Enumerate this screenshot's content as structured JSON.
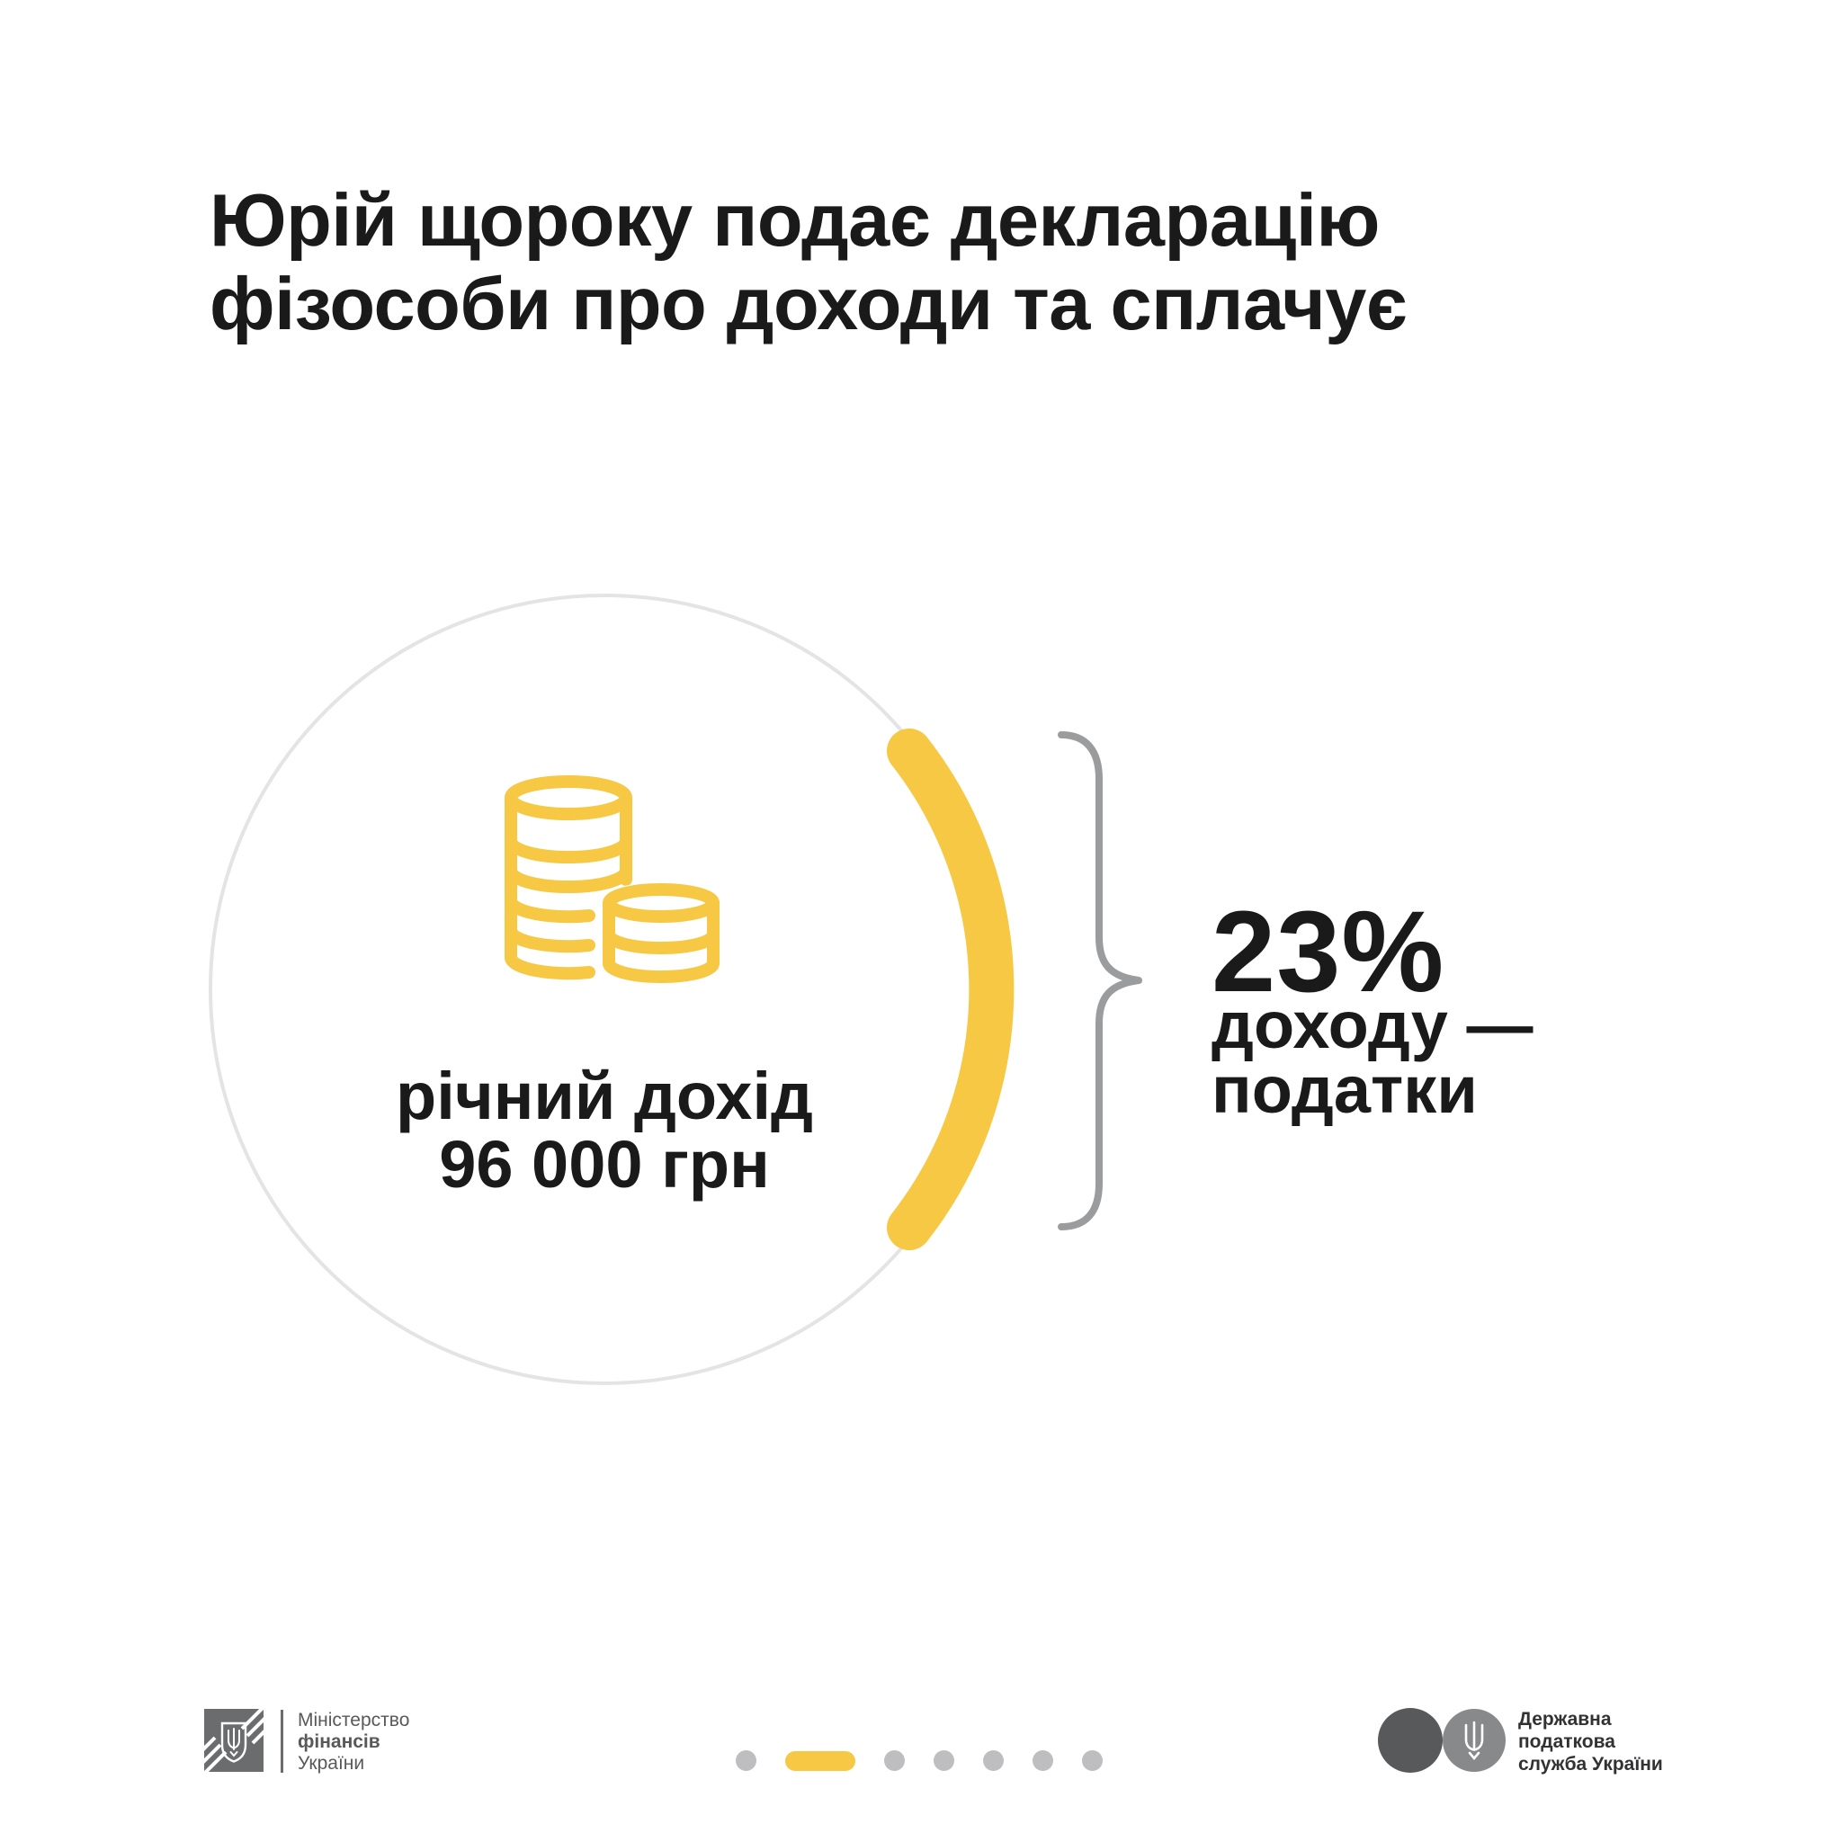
{
  "title": {
    "line1": "Юрій щороку подає декларацію",
    "line2": "фізособи про доходи та сплачує"
  },
  "income_circle": {
    "icon": "coins-icon",
    "label_line1": "річний дохід",
    "label_line2": "96 000 грн"
  },
  "tax_result": {
    "percent": "23%",
    "description_line1": "доходу —",
    "description_line2": "податки"
  },
  "footer": {
    "ministry_logo": {
      "icon": "trident-shield-icon",
      "line1": "Міністерство",
      "line2": "фінансів",
      "line3": "України"
    },
    "tax_service_logo": {
      "icon": "trident-circles-icon",
      "line1": "Державна",
      "line2": "податкова",
      "line3": "служба України"
    },
    "pagination": {
      "total": 7,
      "active_index": 1
    }
  },
  "colors": {
    "accent_yellow": "#F7C844",
    "text_black": "#1A1A1B",
    "circle_outline_gray": "#E4E4E6",
    "brace_gray": "#9B9C9E",
    "ministry_gray": "#6B6C6E",
    "ministry_text_gray": "#58595B",
    "tax_text_dark": "#323234",
    "tax_circle_dark": "#58595B",
    "tax_circle_light": "#88898B",
    "inactive_dot_gray": "#BEBEC0"
  }
}
